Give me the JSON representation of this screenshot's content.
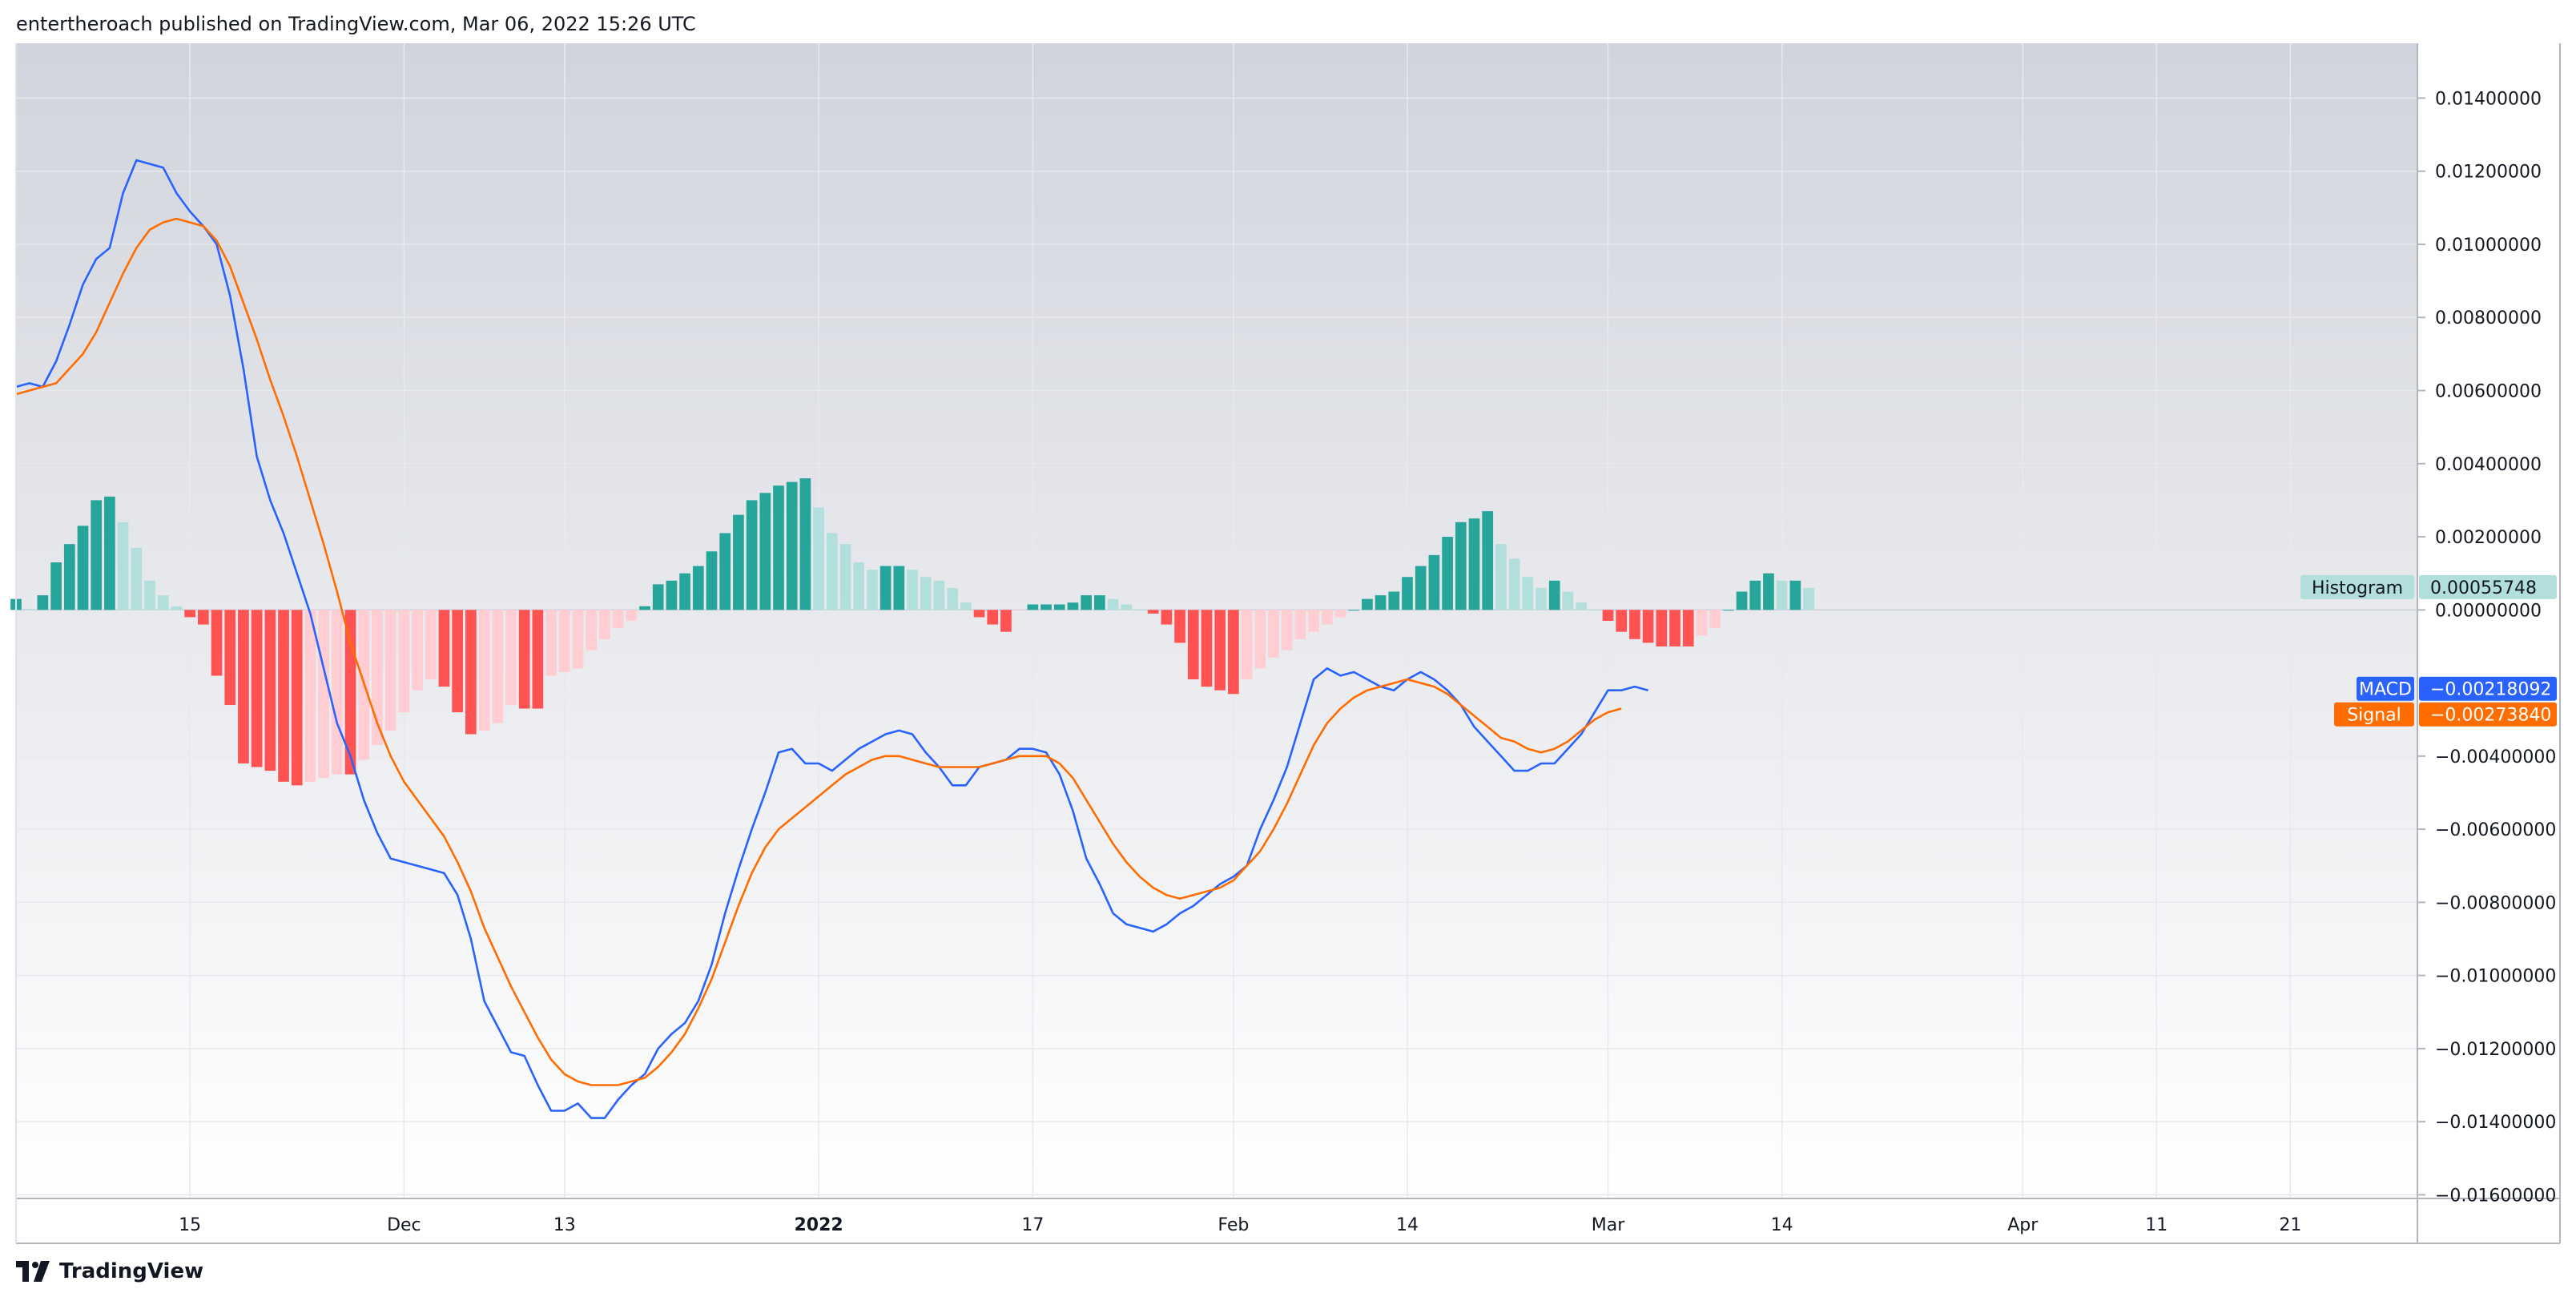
{
  "header": {
    "text": "entertheroach published on TradingView.com, Mar 06, 2022 15:26 UTC"
  },
  "footer": {
    "brand": "TradingView"
  },
  "colors": {
    "macd": "#2962ff",
    "signal": "#ff6d00",
    "hist_pos_strong": "#26a69a",
    "hist_pos_weak": "#b2dfdb",
    "hist_neg_strong": "#ff5252",
    "hist_neg_weak": "#ffcdd2",
    "bg_top": "#d1d4dc",
    "bg_bottom": "#ffffff"
  },
  "chart_data": {
    "type": "line",
    "y_ticks": [
      "0.01400000",
      "0.01200000",
      "0.01000000",
      "0.00800000",
      "0.00600000",
      "0.00400000",
      "0.00200000",
      "0.00000000",
      "−0.00400000",
      "−0.00600000",
      "−0.00800000",
      "−0.01000000",
      "−0.01200000",
      "−0.01400000",
      "−0.01600000"
    ],
    "y_tick_values": [
      0.014,
      0.012,
      0.01,
      0.008,
      0.006,
      0.004,
      0.002,
      0.0,
      -0.004,
      -0.006,
      -0.008,
      -0.01,
      -0.012,
      -0.014,
      -0.016
    ],
    "ylim": [
      -0.0161,
      0.0155
    ],
    "x_ticks": [
      {
        "label": "15",
        "x": 13,
        "bold": false
      },
      {
        "label": "Dec",
        "x": 29,
        "bold": false
      },
      {
        "label": "13",
        "x": 41,
        "bold": false
      },
      {
        "label": "2022",
        "x": 60,
        "bold": true
      },
      {
        "label": "17",
        "x": 76,
        "bold": false
      },
      {
        "label": "Feb",
        "x": 91,
        "bold": false
      },
      {
        "label": "14",
        "x": 104,
        "bold": false
      },
      {
        "label": "Mar",
        "x": 119,
        "bold": false
      },
      {
        "label": "14",
        "x": 132,
        "bold": false
      },
      {
        "label": "Apr",
        "x": 150,
        "bold": false
      },
      {
        "label": "11",
        "x": 160,
        "bold": false
      },
      {
        "label": "21",
        "x": 170,
        "bold": false
      }
    ],
    "xlim": [
      0,
      179.5
    ],
    "histogram": [
      0.0003,
      3e-05,
      0.0004,
      0.0013,
      0.0018,
      0.0023,
      0.003,
      0.0031,
      0.0024,
      0.0017,
      0.0008,
      0.0004,
      0.0001,
      -0.0002,
      -0.0004,
      -0.0018,
      -0.0026,
      -0.0042,
      -0.0043,
      -0.0044,
      -0.0047,
      -0.0048,
      -0.0047,
      -0.0046,
      -0.0045,
      -0.0045,
      -0.0041,
      -0.0037,
      -0.0033,
      -0.0028,
      -0.0022,
      -0.0019,
      -0.0021,
      -0.0028,
      -0.0034,
      -0.0033,
      -0.0031,
      -0.0026,
      -0.0027,
      -0.0027,
      -0.0018,
      -0.0017,
      -0.0016,
      -0.0011,
      -0.0008,
      -0.0005,
      -0.0003,
      0.0001,
      0.0007,
      0.0008,
      0.001,
      0.0012,
      0.0016,
      0.0021,
      0.0026,
      0.003,
      0.0032,
      0.0034,
      0.0035,
      0.0036,
      0.0028,
      0.0021,
      0.0018,
      0.0013,
      0.0011,
      0.0012,
      0.0012,
      0.0011,
      0.0009,
      0.0008,
      0.0006,
      0.0002,
      -0.0002,
      -0.0004,
      -0.0006,
      -2e-05,
      0.00015,
      0.00015,
      0.00015,
      0.0002,
      0.0004,
      0.0004,
      0.0003,
      0.00015,
      0.0,
      -0.0001,
      -0.0004,
      -0.0009,
      -0.0019,
      -0.0021,
      -0.0022,
      -0.0023,
      -0.0019,
      -0.0016,
      -0.0013,
      -0.0011,
      -0.0008,
      -0.0006,
      -0.0004,
      -0.0002,
      0.0,
      0.0003,
      0.0004,
      0.0005,
      0.0009,
      0.0012,
      0.0015,
      0.002,
      0.0024,
      0.0025,
      0.0027,
      0.0018,
      0.0014,
      0.0009,
      0.0006,
      0.0008,
      0.0005,
      0.0002,
      0.0,
      -0.0003,
      -0.0006,
      -0.0008,
      -0.0009,
      -0.001,
      -0.001,
      -0.001,
      -0.0007,
      -0.0005,
      0.0,
      0.0005,
      0.0008,
      0.001,
      0.0008,
      0.0008,
      0.0006
    ],
    "series": [
      {
        "name": "MACD",
        "values": [
          0.0061,
          0.0062,
          0.0061,
          0.0068,
          0.0078,
          0.0089,
          0.0096,
          0.0099,
          0.0114,
          0.0123,
          0.0122,
          0.0121,
          0.0114,
          0.0109,
          0.0105,
          0.01,
          0.0086,
          0.0066,
          0.0042,
          0.003,
          0.0021,
          0.001,
          -0.0001,
          -0.0016,
          -0.0031,
          -0.004,
          -0.0052,
          -0.0061,
          -0.0068,
          -0.0069,
          -0.007,
          -0.0071,
          -0.0072,
          -0.0078,
          -0.009,
          -0.0107,
          -0.0114,
          -0.0121,
          -0.0122,
          -0.013,
          -0.0137,
          -0.0137,
          -0.0135,
          -0.0139,
          -0.0139,
          -0.0134,
          -0.013,
          -0.0127,
          -0.012,
          -0.0116,
          -0.0113,
          -0.0107,
          -0.0097,
          -0.0083,
          -0.0071,
          -0.006,
          -0.005,
          -0.0039,
          -0.0038,
          -0.0042,
          -0.0042,
          -0.0044,
          -0.0041,
          -0.0038,
          -0.0036,
          -0.0034,
          -0.0033,
          -0.0034,
          -0.0039,
          -0.0043,
          -0.0048,
          -0.0048,
          -0.0043,
          -0.0042,
          -0.0041,
          -0.0038,
          -0.0038,
          -0.0039,
          -0.0045,
          -0.0055,
          -0.0068,
          -0.0075,
          -0.0083,
          -0.0086,
          -0.0087,
          -0.0088,
          -0.0086,
          -0.0083,
          -0.0081,
          -0.0078,
          -0.0075,
          -0.0073,
          -0.007,
          -0.006,
          -0.0052,
          -0.0043,
          -0.0031,
          -0.0019,
          -0.0016,
          -0.0018,
          -0.0017,
          -0.0019,
          -0.0021,
          -0.0022,
          -0.0019,
          -0.0017,
          -0.0019,
          -0.0022,
          -0.0026,
          -0.0032,
          -0.0036,
          -0.004,
          -0.0044,
          -0.0044,
          -0.0042,
          -0.0042,
          -0.0038,
          -0.0034,
          -0.0028,
          -0.0022,
          -0.0022,
          -0.0021,
          -0.0022
        ]
      },
      {
        "name": "Signal",
        "values": [
          0.0059,
          0.006,
          0.0061,
          0.0062,
          0.0066,
          0.007,
          0.0076,
          0.0084,
          0.0092,
          0.0099,
          0.0104,
          0.0106,
          0.0107,
          0.0106,
          0.0105,
          0.0101,
          0.0094,
          0.0084,
          0.0074,
          0.0063,
          0.0053,
          0.0042,
          0.003,
          0.0018,
          0.0005,
          -0.0009,
          -0.002,
          -0.0031,
          -0.004,
          -0.0047,
          -0.0052,
          -0.0057,
          -0.0062,
          -0.0069,
          -0.0077,
          -0.0087,
          -0.0095,
          -0.0103,
          -0.011,
          -0.0117,
          -0.0123,
          -0.0127,
          -0.0129,
          -0.013,
          -0.013,
          -0.013,
          -0.0129,
          -0.0128,
          -0.0125,
          -0.0121,
          -0.0116,
          -0.0109,
          -0.0101,
          -0.0091,
          -0.0081,
          -0.0072,
          -0.0065,
          -0.006,
          -0.0057,
          -0.0054,
          -0.0051,
          -0.0048,
          -0.0045,
          -0.0043,
          -0.0041,
          -0.004,
          -0.004,
          -0.0041,
          -0.0042,
          -0.0043,
          -0.0043,
          -0.0043,
          -0.0043,
          -0.0042,
          -0.0041,
          -0.004,
          -0.004,
          -0.004,
          -0.0042,
          -0.0046,
          -0.0052,
          -0.0058,
          -0.0064,
          -0.0069,
          -0.0073,
          -0.0076,
          -0.0078,
          -0.0079,
          -0.0078,
          -0.0077,
          -0.0076,
          -0.0074,
          -0.007,
          -0.0066,
          -0.006,
          -0.0053,
          -0.0045,
          -0.0037,
          -0.0031,
          -0.0027,
          -0.0024,
          -0.0022,
          -0.0021,
          -0.002,
          -0.0019,
          -0.002,
          -0.0021,
          -0.0023,
          -0.0026,
          -0.0029,
          -0.0032,
          -0.0035,
          -0.0036,
          -0.0038,
          -0.0039,
          -0.0038,
          -0.0036,
          -0.0033,
          -0.003,
          -0.0028,
          -0.0027
        ]
      }
    ]
  },
  "tags": {
    "histogram": {
      "label": "Histogram",
      "value": "0.00055748"
    },
    "macd": {
      "label": "MACD",
      "value": "−0.00218092"
    },
    "signal": {
      "label": "Signal",
      "value": "−0.00273840"
    }
  }
}
